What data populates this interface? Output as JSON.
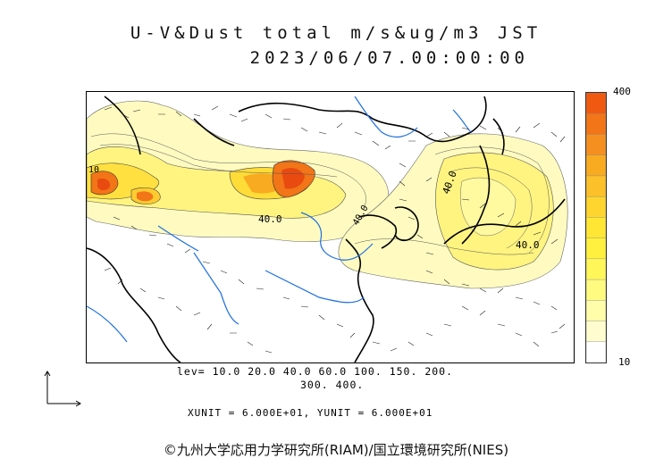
{
  "header": {
    "title": "U-V&Dust total m/s&ug/m3 JST",
    "datetime": "2023/06/07.00:00:00"
  },
  "legend": {
    "max_label": "400",
    "min_label": "10",
    "colors": [
      "#f05a10",
      "#f27518",
      "#f59020",
      "#f8aa20",
      "#fbc02a",
      "#fed52e",
      "#ffe635",
      "#fff040",
      "#fff65a",
      "#fffa80",
      "#fffcaa",
      "#fffdd0",
      "#ffffff"
    ]
  },
  "map": {
    "contour_labels": [
      "10",
      "40.0",
      "40.0",
      "40.0",
      "40.0"
    ],
    "colors": {
      "coast": "#000000",
      "river": "#1e6fe0",
      "arrow": "#222222"
    }
  },
  "levels": {
    "line1": "lev= 10.0 20.0 40.0 60.0 100. 150. 200.",
    "line2": "300. 400."
  },
  "units": {
    "text": "XUNIT = 6.000E+01, YUNIT = 6.000E+01"
  },
  "credit": {
    "text": "©九州大学応用力学研究所(RIAM)/国立環境研究所(NIES)"
  }
}
